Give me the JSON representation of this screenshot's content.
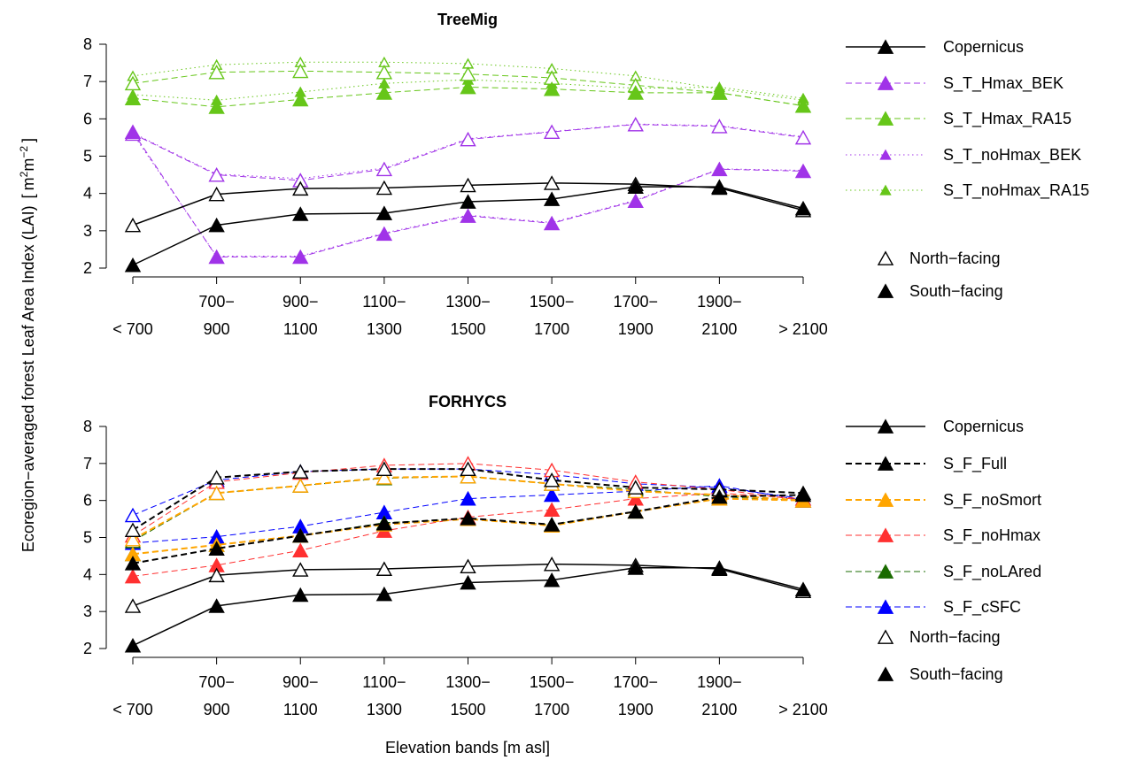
{
  "chart_data": [
    {
      "type": "line",
      "title": "TreeMig",
      "categories": [
        [
          "< 700"
        ],
        [
          "700−",
          "900"
        ],
        [
          "900−",
          "1100"
        ],
        [
          "1100−",
          "1300"
        ],
        [
          "1300−",
          "1500"
        ],
        [
          "1500−",
          "1700"
        ],
        [
          "1700−",
          "1900"
        ],
        [
          "1900−",
          "2100"
        ],
        [
          "> 2100"
        ]
      ],
      "ylim": [
        2,
        8
      ],
      "yticks": [
        2,
        3,
        4,
        5,
        6,
        7,
        8
      ],
      "series": [
        {
          "name": "Copernicus",
          "color": "#000000",
          "dash": "solid",
          "marker": "normal",
          "width": 1.5,
          "north": [
            3.15,
            3.98,
            4.13,
            4.15,
            4.22,
            4.28,
            4.25,
            4.15,
            3.55
          ],
          "south": [
            2.08,
            3.15,
            3.45,
            3.47,
            3.78,
            3.85,
            4.18,
            4.18,
            3.6
          ]
        },
        {
          "name": "S_T_Hmax_BEK",
          "color": "#a033e8",
          "dash": "dashed",
          "marker": "normal",
          "width": 1,
          "north": [
            5.6,
            4.5,
            4.35,
            4.65,
            5.45,
            5.65,
            5.85,
            5.8,
            5.5
          ],
          "south": [
            5.65,
            2.3,
            2.3,
            2.92,
            3.4,
            3.2,
            3.8,
            4.65,
            4.6
          ]
        },
        {
          "name": "S_T_Hmax_RA15",
          "color": "#66c619",
          "dash": "dashed",
          "marker": "normal",
          "width": 1,
          "north": [
            6.95,
            7.25,
            7.28,
            7.25,
            7.2,
            7.1,
            6.9,
            6.7,
            6.35
          ],
          "south": [
            6.55,
            6.32,
            6.52,
            6.7,
            6.85,
            6.8,
            6.7,
            6.7,
            6.35
          ]
        },
        {
          "name": "S_T_noHmax_BEK",
          "color": "#a033e8",
          "dash": "dotted",
          "marker": "small",
          "width": 1,
          "north": [
            5.62,
            4.52,
            4.4,
            4.68,
            5.47,
            5.66,
            5.86,
            5.82,
            5.52
          ],
          "south": [
            5.6,
            2.32,
            2.32,
            2.94,
            3.42,
            3.22,
            3.82,
            4.66,
            4.62
          ]
        },
        {
          "name": "S_T_noHmax_RA15",
          "color": "#66c619",
          "dash": "dotted",
          "marker": "small",
          "width": 1,
          "north": [
            7.15,
            7.45,
            7.52,
            7.52,
            7.48,
            7.35,
            7.15,
            6.8,
            6.5
          ],
          "south": [
            6.65,
            6.5,
            6.72,
            6.95,
            7.05,
            6.95,
            6.82,
            6.85,
            6.55
          ]
        }
      ],
      "marker_legend": [
        "North−facing",
        "South−facing"
      ]
    },
    {
      "type": "line",
      "title": "FORHYCS",
      "categories": [
        [
          "< 700"
        ],
        [
          "700−",
          "900"
        ],
        [
          "900−",
          "1100"
        ],
        [
          "1100−",
          "1300"
        ],
        [
          "1300−",
          "1500"
        ],
        [
          "1500−",
          "1700"
        ],
        [
          "1700−",
          "1900"
        ],
        [
          "1900−",
          "2100"
        ],
        [
          "> 2100"
        ]
      ],
      "ylim": [
        2,
        8
      ],
      "yticks": [
        2,
        3,
        4,
        5,
        6,
        7,
        8
      ],
      "series": [
        {
          "name": "Copernicus",
          "color": "#000000",
          "dash": "solid",
          "marker": "normal",
          "width": 1.5,
          "north": [
            3.15,
            3.98,
            4.13,
            4.15,
            4.22,
            4.28,
            4.25,
            4.15,
            3.55
          ],
          "south": [
            2.08,
            3.15,
            3.45,
            3.47,
            3.78,
            3.85,
            4.18,
            4.18,
            3.6
          ]
        },
        {
          "name": "S_F_Full",
          "color": "#000000",
          "dash": "dashed",
          "marker": "normal",
          "width": 2,
          "north": [
            5.2,
            6.62,
            6.78,
            6.85,
            6.85,
            6.55,
            6.35,
            6.3,
            6.2
          ],
          "south": [
            4.3,
            4.7,
            5.05,
            5.38,
            5.52,
            5.35,
            5.7,
            6.1,
            6.15
          ]
        },
        {
          "name": "S_F_noSmort",
          "color": "#ffa500",
          "dash": "dashed",
          "marker": "normal",
          "width": 2,
          "north": [
            4.95,
            6.2,
            6.4,
            6.62,
            6.65,
            6.45,
            6.25,
            6.15,
            6.0
          ],
          "south": [
            4.55,
            4.8,
            5.05,
            5.35,
            5.5,
            5.32,
            5.7,
            6.05,
            6.0
          ]
        },
        {
          "name": "S_F_noHmax",
          "color": "#ff3030",
          "dash": "dashed",
          "marker": "normal",
          "width": 1,
          "north": [
            5.05,
            6.5,
            6.75,
            6.95,
            7.0,
            6.82,
            6.5,
            6.3,
            6.0
          ],
          "south": [
            3.95,
            4.25,
            4.65,
            5.18,
            5.55,
            5.75,
            6.05,
            6.2,
            6.05
          ]
        },
        {
          "name": "S_F_noLAred",
          "color": "#1a6b00",
          "dash": "dashed",
          "marker": "normal",
          "width": 1,
          "north": [
            4.9,
            6.2,
            6.4,
            6.6,
            6.65,
            6.45,
            6.3,
            6.1,
            6.0
          ],
          "south": [
            4.55,
            4.8,
            5.05,
            5.4,
            5.5,
            5.35,
            5.7,
            6.05,
            6.0
          ]
        },
        {
          "name": "S_F_cSFC",
          "color": "#0000ff",
          "dash": "dashed",
          "marker": "normal",
          "width": 1,
          "north": [
            5.6,
            6.55,
            6.78,
            6.85,
            6.85,
            6.7,
            6.45,
            6.35,
            6.05
          ],
          "south": [
            4.85,
            5.02,
            5.3,
            5.68,
            6.05,
            6.15,
            6.25,
            6.4,
            6.0
          ]
        }
      ],
      "marker_legend": [
        "North−facing",
        "South−facing"
      ]
    }
  ],
  "shared": {
    "xlabel": "Elevation bands [m asl]",
    "ylabel": "Ecoregion−averaged forest Leaf Area Index (LAI)",
    "yunit": [
      "[",
      "m",
      "2",
      "m",
      "−2",
      "]"
    ]
  }
}
